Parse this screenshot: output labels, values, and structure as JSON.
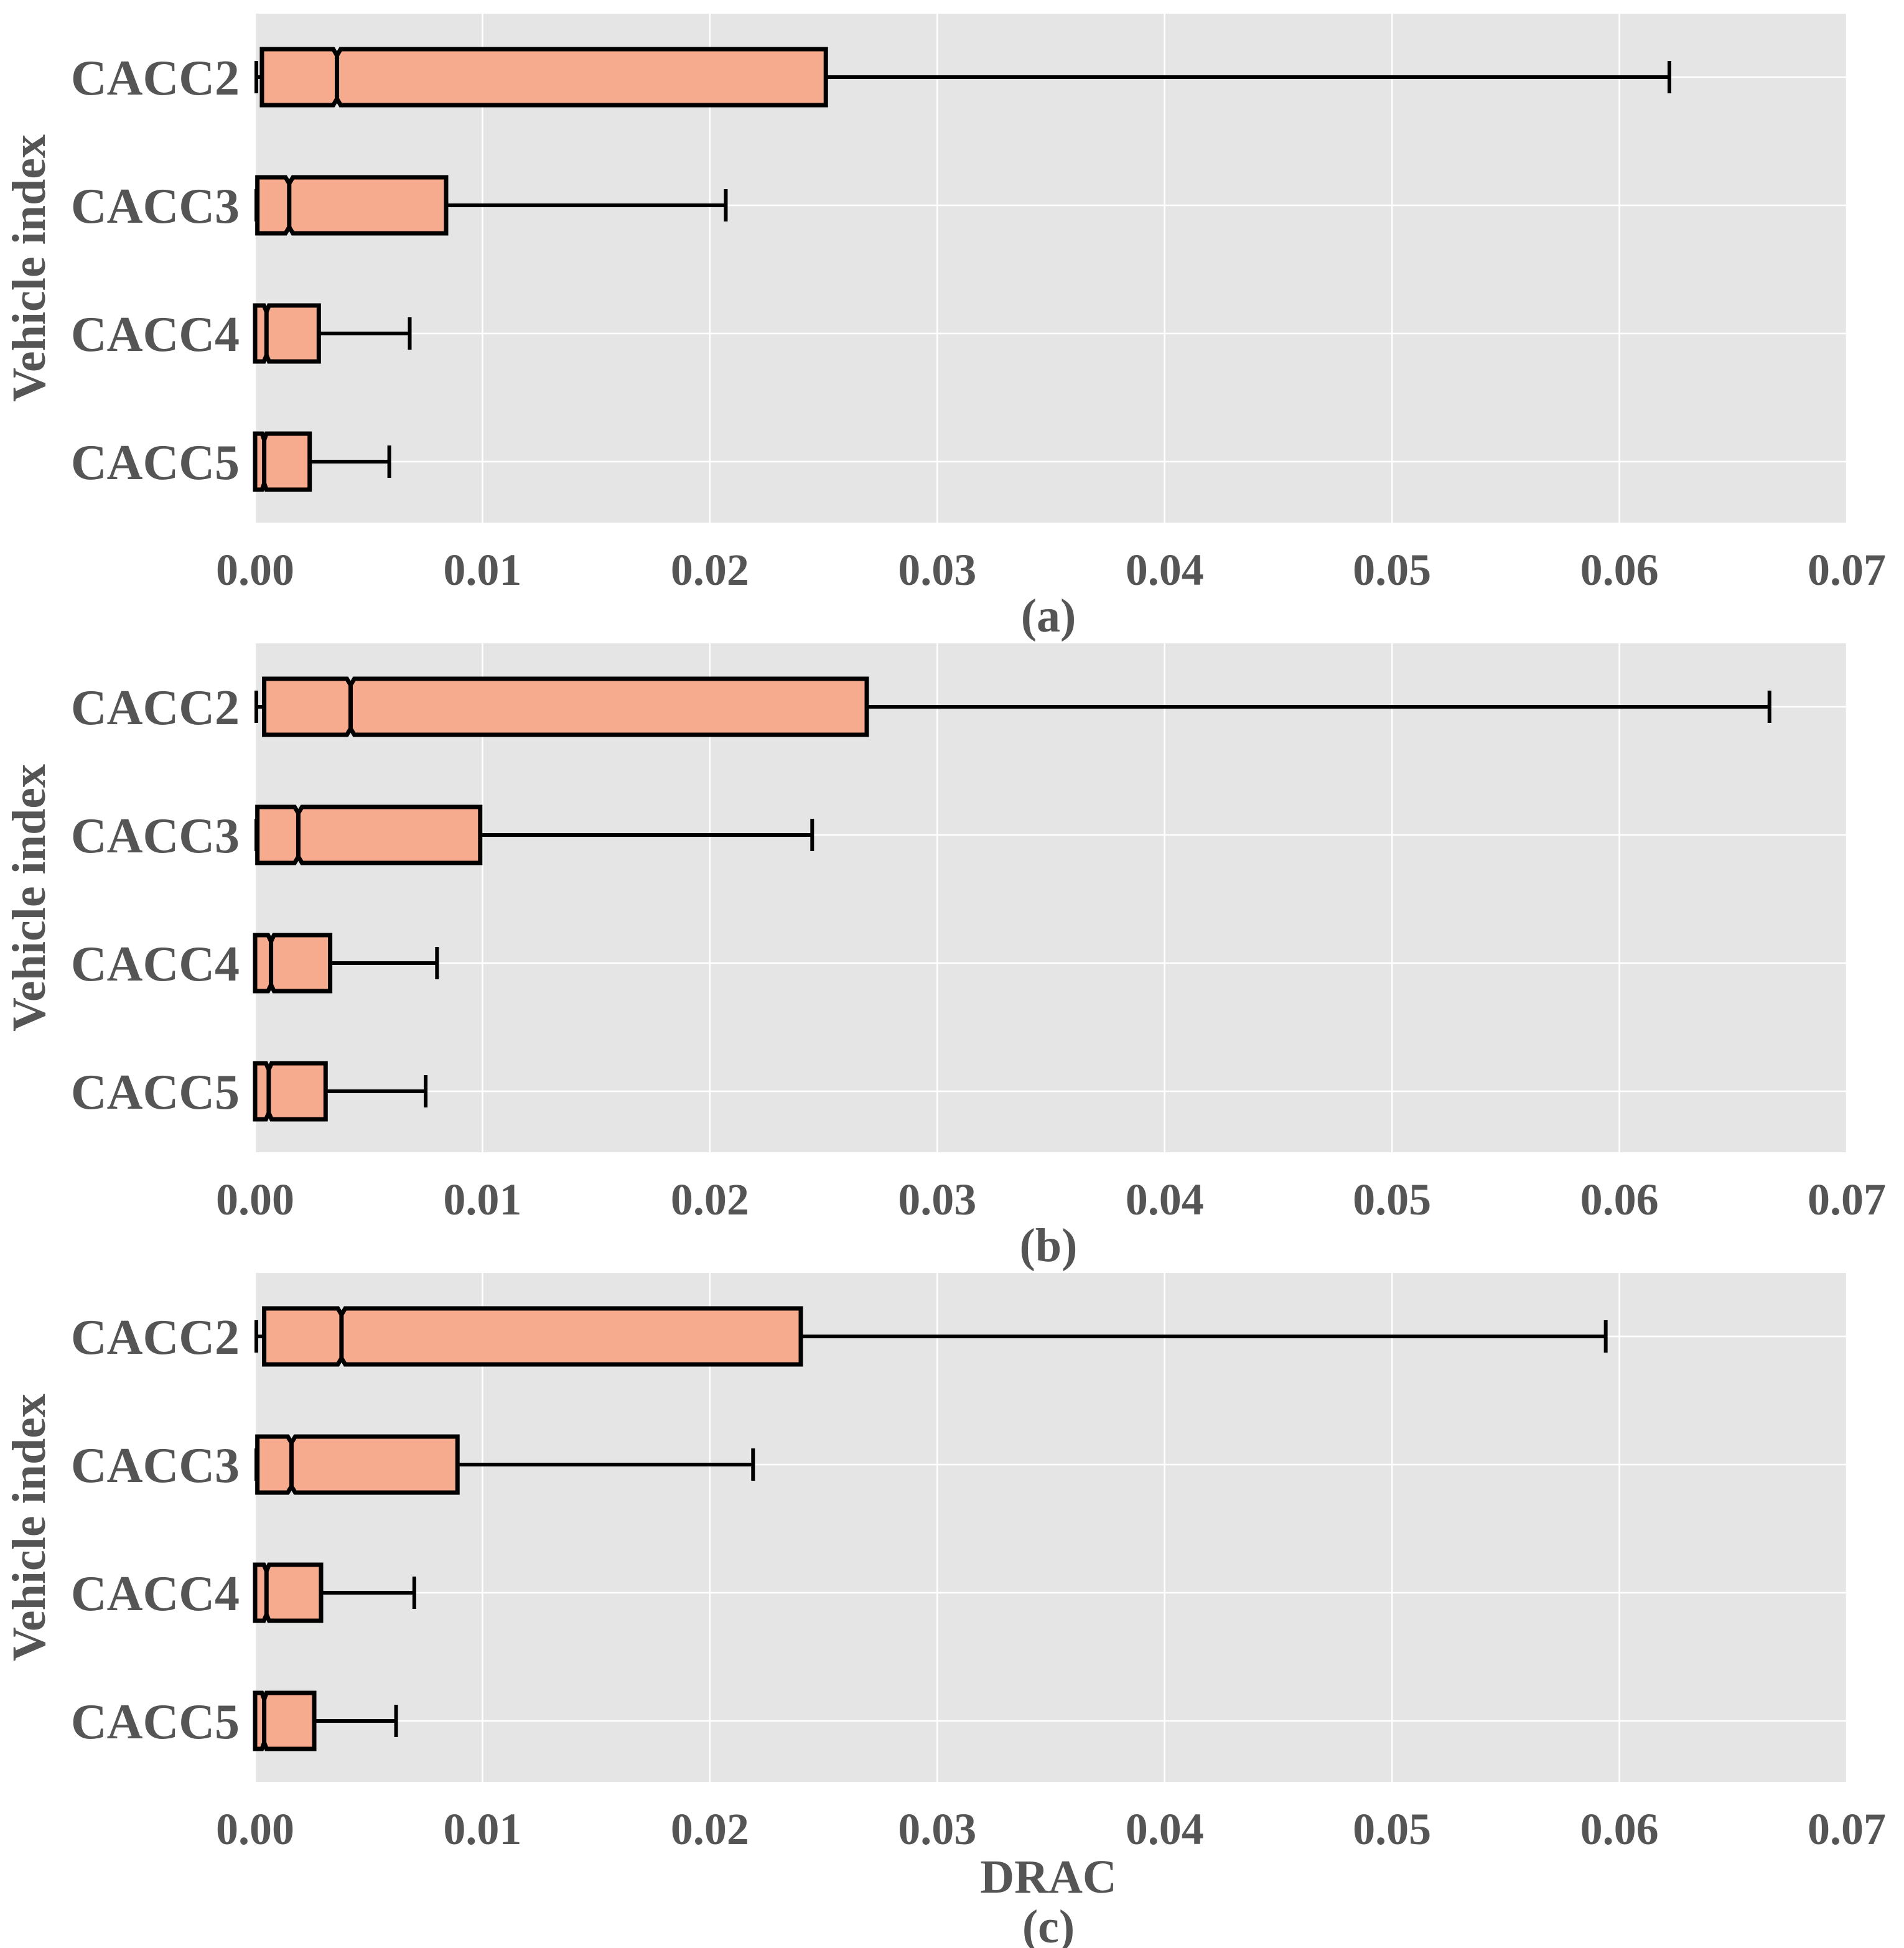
{
  "colors": {
    "plot_background": "#e5e5e5",
    "grid": "#ffffff",
    "box_fill": "#f7ab8e",
    "box_edge": "#000000",
    "text": "#555555"
  },
  "chart_data": [
    {
      "type": "boxplot",
      "orientation": "horizontal",
      "notched": true,
      "panel_label": "(a)",
      "xlabel": "",
      "ylabel": "Vehicle index",
      "xlim": [
        0,
        0.07
      ],
      "xticks": [
        "0.00",
        "0.01",
        "0.02",
        "0.03",
        "0.04",
        "0.05",
        "0.06",
        "0.07"
      ],
      "grid": true,
      "categories": [
        "CACC2",
        "CACC3",
        "CACC4",
        "CACC5"
      ],
      "boxes": [
        {
          "name": "CACC2",
          "whisker_low": 0.0,
          "q1": 0.0003,
          "median": 0.0036,
          "q3": 0.0251,
          "whisker_high": 0.0622
        },
        {
          "name": "CACC3",
          "whisker_low": 0.0,
          "q1": 0.0001,
          "median": 0.0015,
          "q3": 0.0084,
          "whisker_high": 0.0207
        },
        {
          "name": "CACC4",
          "whisker_low": 0.0,
          "q1": 0.0,
          "median": 0.0005,
          "q3": 0.0028,
          "whisker_high": 0.0068
        },
        {
          "name": "CACC5",
          "whisker_low": 0.0,
          "q1": 0.0,
          "median": 0.0004,
          "q3": 0.0024,
          "whisker_high": 0.0059
        }
      ]
    },
    {
      "type": "boxplot",
      "orientation": "horizontal",
      "notched": true,
      "panel_label": "(b)",
      "xlabel": "",
      "ylabel": "Vehicle index",
      "xlim": [
        0,
        0.07
      ],
      "xticks": [
        "0.00",
        "0.01",
        "0.02",
        "0.03",
        "0.04",
        "0.05",
        "0.06",
        "0.07"
      ],
      "grid": true,
      "categories": [
        "CACC2",
        "CACC3",
        "CACC4",
        "CACC5"
      ],
      "boxes": [
        {
          "name": "CACC2",
          "whisker_low": 0.0,
          "q1": 0.0004,
          "median": 0.0042,
          "q3": 0.0269,
          "whisker_high": 0.0666
        },
        {
          "name": "CACC3",
          "whisker_low": 0.0,
          "q1": 0.0001,
          "median": 0.0019,
          "q3": 0.0099,
          "whisker_high": 0.0245
        },
        {
          "name": "CACC4",
          "whisker_low": 0.0,
          "q1": 0.0,
          "median": 0.0007,
          "q3": 0.0033,
          "whisker_high": 0.008
        },
        {
          "name": "CACC5",
          "whisker_low": 0.0,
          "q1": 0.0,
          "median": 0.0006,
          "q3": 0.0031,
          "whisker_high": 0.0075
        }
      ]
    },
    {
      "type": "boxplot",
      "orientation": "horizontal",
      "notched": true,
      "panel_label": "(c)",
      "xlabel": "DRAC",
      "ylabel": "Vehicle index",
      "xlim": [
        0,
        0.07
      ],
      "xticks": [
        "0.00",
        "0.01",
        "0.02",
        "0.03",
        "0.04",
        "0.05",
        "0.06",
        "0.07"
      ],
      "grid": true,
      "categories": [
        "CACC2",
        "CACC3",
        "CACC4",
        "CACC5"
      ],
      "boxes": [
        {
          "name": "CACC2",
          "whisker_low": 0.0,
          "q1": 0.0004,
          "median": 0.0038,
          "q3": 0.024,
          "whisker_high": 0.0594
        },
        {
          "name": "CACC3",
          "whisker_low": 0.0,
          "q1": 0.0001,
          "median": 0.0016,
          "q3": 0.0089,
          "whisker_high": 0.0219
        },
        {
          "name": "CACC4",
          "whisker_low": 0.0,
          "q1": 0.0,
          "median": 0.0005,
          "q3": 0.0029,
          "whisker_high": 0.007
        },
        {
          "name": "CACC5",
          "whisker_low": 0.0,
          "q1": 0.0,
          "median": 0.0004,
          "q3": 0.0026,
          "whisker_high": 0.0062
        }
      ]
    }
  ]
}
